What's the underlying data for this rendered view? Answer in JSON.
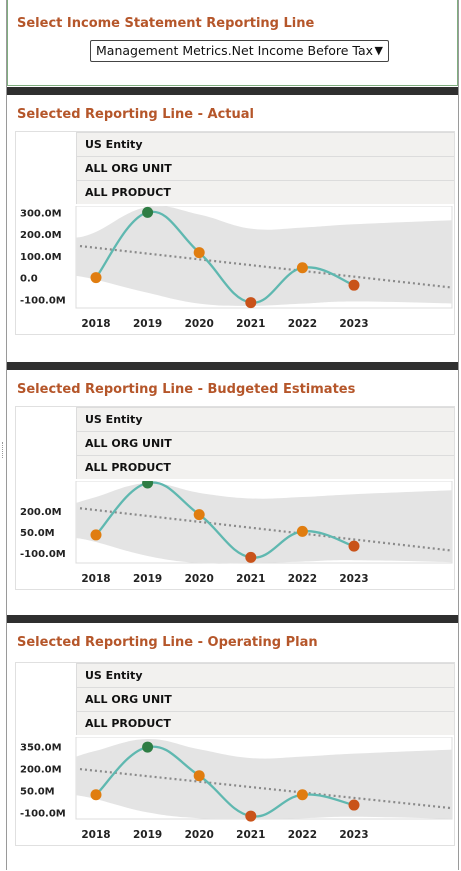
{
  "selector": {
    "title": "Select Income Statement Reporting Line",
    "selected": "Management Metrics.Net Income Before Tax"
  },
  "colors": {
    "title": "#b5562a",
    "line": "#5fb8b0",
    "band": "#e4e4e4",
    "trend": "#8a8a8a",
    "point_high": "#2e7d44",
    "point_mid": "#e07d10",
    "point_low": "#c9531a"
  },
  "panels": [
    {
      "title": "Selected Reporting Line - Actual",
      "rows": [
        "US Entity",
        "ALL ORG UNIT",
        "ALL PRODUCT"
      ]
    },
    {
      "title": "Selected Reporting Line - Budgeted Estimates",
      "rows": [
        "US Entity",
        "ALL ORG UNIT",
        "ALL PRODUCT"
      ]
    },
    {
      "title": "Selected Reporting Line - Operating Plan",
      "rows": [
        "US Entity",
        "ALL ORG UNIT",
        "ALL PRODUCT"
      ]
    }
  ],
  "chart_data": [
    {
      "type": "line",
      "categories": [
        "2018",
        "2019",
        "2020",
        "2021",
        "2022",
        "2023"
      ],
      "series": [
        {
          "values": [
            0,
            300,
            115,
            -115,
            45,
            -35
          ]
        }
      ],
      "point_colors": [
        "#e07d10",
        "#2e7d44",
        "#e07d10",
        "#c9531a",
        "#e07d10",
        "#c9531a"
      ],
      "y_ticks": [
        "300.0M",
        "200.0M",
        "100.0M",
        "0.0",
        "-100.0M"
      ],
      "y_tick_values": [
        300,
        200,
        100,
        0,
        -100
      ],
      "ylim": [
        -140,
        320
      ],
      "trend": [
        145,
        -45
      ],
      "band_upper": [
        210,
        325,
        290,
        225,
        230,
        245
      ],
      "band_lower": [
        -10,
        -70,
        -120,
        -130,
        -120,
        -110
      ],
      "unit": "M"
    },
    {
      "type": "line",
      "categories": [
        "2018",
        "2019",
        "2020",
        "2021",
        "2022",
        "2023"
      ],
      "series": [
        {
          "values": [
            30,
            400,
            175,
            -130,
            55,
            -50
          ]
        }
      ],
      "point_colors": [
        "#e07d10",
        "#2e7d44",
        "#e07d10",
        "#c9531a",
        "#e07d10",
        "#c9531a"
      ],
      "y_ticks": [
        "200.0M",
        "50.0M",
        "-100.0M"
      ],
      "y_tick_values": [
        200,
        50,
        -100
      ],
      "ylim": [
        -170,
        400
      ],
      "trend": [
        220,
        -80
      ],
      "band_upper": [
        300,
        400,
        330,
        290,
        300,
        320
      ],
      "band_lower": [
        -20,
        -120,
        -170,
        -170,
        -160,
        -150
      ],
      "unit": "M"
    },
    {
      "type": "line",
      "categories": [
        "2018",
        "2019",
        "2020",
        "2021",
        "2022",
        "2023"
      ],
      "series": [
        {
          "values": [
            20,
            345,
            150,
            -125,
            20,
            -50
          ]
        }
      ],
      "point_colors": [
        "#e07d10",
        "#2e7d44",
        "#e07d10",
        "#c9531a",
        "#e07d10",
        "#c9531a"
      ],
      "y_ticks": [
        "350.0M",
        "200.0M",
        "50.0M",
        "-100.0M"
      ],
      "y_tick_values": [
        350,
        200,
        50,
        -100
      ],
      "ylim": [
        -145,
        400
      ],
      "trend": [
        195,
        -70
      ],
      "band_upper": [
        320,
        400,
        330,
        270,
        280,
        300
      ],
      "band_lower": [
        -10,
        -100,
        -140,
        -145,
        -140,
        -130
      ],
      "unit": "M"
    }
  ]
}
